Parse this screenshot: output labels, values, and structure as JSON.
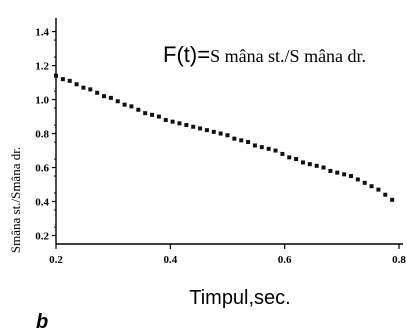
{
  "chart_data": {
    "type": "scatter",
    "title_main": "F(t)=",
    "title_rest": "S mâna st./S mâna dr.",
    "xlabel": "Timpul,sec.",
    "ylabel": "Smâna st./Smâna dr.",
    "panel_label": "b",
    "xlim": [
      0.2,
      0.8
    ],
    "ylim": [
      0.15,
      1.48
    ],
    "x_ticks": [
      "0.2",
      "0.4",
      "0.6",
      "0.8"
    ],
    "y_ticks": [
      "0.2",
      "0.4",
      "0.6",
      "0.8",
      "1.0",
      "1.2",
      "1.4"
    ],
    "marker_color": "#111111",
    "x": [
      0.2,
      0.212,
      0.224,
      0.236,
      0.248,
      0.26,
      0.272,
      0.284,
      0.296,
      0.308,
      0.32,
      0.332,
      0.344,
      0.356,
      0.368,
      0.38,
      0.392,
      0.404,
      0.416,
      0.428,
      0.44,
      0.452,
      0.464,
      0.476,
      0.488,
      0.5,
      0.512,
      0.524,
      0.536,
      0.548,
      0.56,
      0.572,
      0.584,
      0.596,
      0.608,
      0.62,
      0.632,
      0.644,
      0.656,
      0.668,
      0.68,
      0.692,
      0.704,
      0.716,
      0.728,
      0.74,
      0.752,
      0.764,
      0.776,
      0.788
    ],
    "y": [
      1.14,
      1.12,
      1.11,
      1.09,
      1.07,
      1.06,
      1.04,
      1.02,
      1.01,
      0.99,
      0.97,
      0.96,
      0.94,
      0.92,
      0.91,
      0.9,
      0.88,
      0.87,
      0.86,
      0.85,
      0.84,
      0.83,
      0.82,
      0.81,
      0.8,
      0.79,
      0.77,
      0.76,
      0.75,
      0.73,
      0.72,
      0.71,
      0.7,
      0.68,
      0.66,
      0.65,
      0.63,
      0.62,
      0.61,
      0.6,
      0.58,
      0.57,
      0.56,
      0.55,
      0.53,
      0.51,
      0.49,
      0.47,
      0.44,
      0.41
    ]
  }
}
